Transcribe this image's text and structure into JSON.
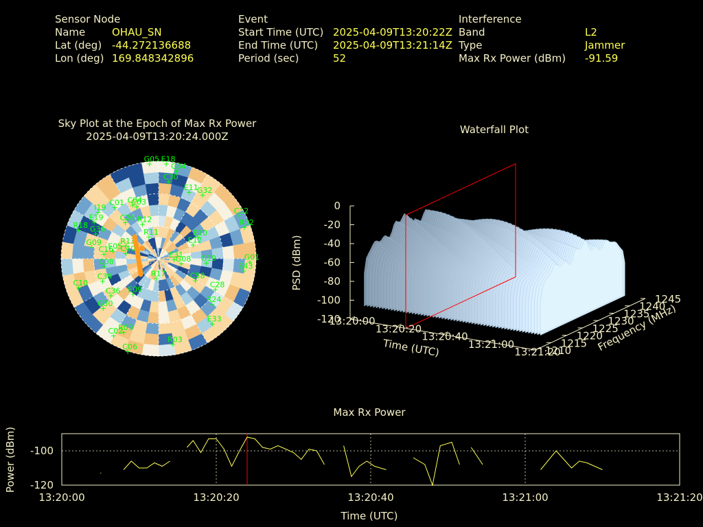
{
  "header": {
    "sensor": {
      "heading": "Sensor Node",
      "rows": [
        {
          "key": "Name",
          "value": "OHAU_SN"
        },
        {
          "key": "Lat (deg)",
          "value": "-44.272136688"
        },
        {
          "key": "Lon (deg)",
          "value": "169.848342896"
        }
      ]
    },
    "event": {
      "heading": "Event",
      "rows": [
        {
          "key": "Start Time (UTC)",
          "value": "2025-04-09T13:20:22Z"
        },
        {
          "key": "End Time (UTC)",
          "value": "2025-04-09T13:21:14Z"
        },
        {
          "key": "Period (sec)",
          "value": "52"
        }
      ]
    },
    "interference": {
      "heading": "Interference",
      "rows": [
        {
          "key": "Band",
          "value": "L2"
        },
        {
          "key": "Type",
          "value": "Jammer"
        },
        {
          "key": "Max Rx Power (dBm)",
          "value": "-91.59"
        }
      ]
    }
  },
  "colors": {
    "background": "#000000",
    "text": "#f4efc6",
    "value": "#ffff55",
    "satellite": "#00ff00",
    "marker": "#ff0000",
    "line": "#ffff55"
  },
  "chart_data": [
    {
      "type": "sky-plot",
      "title": "Sky Plot at the Epoch of Max Rx Power",
      "subtitle": "2025-04-09T13:20:24.000Z",
      "satellites": [
        {
          "id": "G05",
          "az": 355,
          "el": 88
        },
        {
          "id": "E18",
          "az": 5,
          "el": 88
        },
        {
          "id": "G34",
          "az": 12,
          "el": 83
        },
        {
          "id": "C30",
          "az": 8,
          "el": 72
        },
        {
          "id": "E11",
          "az": 25,
          "el": 68
        },
        {
          "id": "G32",
          "az": 35,
          "el": 72
        },
        {
          "id": "C01",
          "az": 320,
          "el": 62
        },
        {
          "id": "C04",
          "az": 335,
          "el": 55
        },
        {
          "id": "C03",
          "az": 338,
          "el": 52
        },
        {
          "id": "I19",
          "az": 308,
          "el": 70
        },
        {
          "id": "E19",
          "az": 300,
          "el": 68
        },
        {
          "id": "R18",
          "az": 290,
          "el": 78
        },
        {
          "id": "G36",
          "az": 292,
          "el": 62
        },
        {
          "id": "C26",
          "az": 318,
          "el": 45
        },
        {
          "id": "R12",
          "az": 336,
          "el": 35
        },
        {
          "id": "E10",
          "az": 62,
          "el": 42
        },
        {
          "id": "E12",
          "az": 68,
          "el": 35
        },
        {
          "id": "C12",
          "az": 62,
          "el": 85
        },
        {
          "id": "R02",
          "az": 70,
          "el": 85
        },
        {
          "id": "G09",
          "az": 280,
          "el": 62
        },
        {
          "id": "C16",
          "az": 275,
          "el": 50
        },
        {
          "id": "E05",
          "az": 280,
          "el": 42
        },
        {
          "id": "R11",
          "az": 338,
          "el": 22
        },
        {
          "id": "R13",
          "az": 292,
          "el": 32
        },
        {
          "id": "C40",
          "az": 280,
          "el": 30
        },
        {
          "id": "C08",
          "az": 262,
          "el": 50
        },
        {
          "id": "E31",
          "az": 92,
          "el": 15
        },
        {
          "id": "G08",
          "az": 102,
          "el": 22
        },
        {
          "id": "G19",
          "az": 95,
          "el": 45
        },
        {
          "id": "E43",
          "az": 98,
          "el": 80
        },
        {
          "id": "G01",
          "az": 92,
          "el": 85
        },
        {
          "id": "C10",
          "az": 250,
          "el": 78
        },
        {
          "id": "C39",
          "az": 248,
          "el": 55
        },
        {
          "id": "C58",
          "az": 120,
          "el": 40
        },
        {
          "id": "C28",
          "az": 118,
          "el": 60
        },
        {
          "id": "R17",
          "az": 185,
          "el": 18
        },
        {
          "id": "E09",
          "az": 215,
          "el": 40
        },
        {
          "id": "R24",
          "az": 130,
          "el": 65
        },
        {
          "id": "C36",
          "az": 232,
          "el": 55
        },
        {
          "id": "G30",
          "az": 228,
          "el": 68
        },
        {
          "id": "E33",
          "az": 140,
          "el": 78
        },
        {
          "id": "R09",
          "az": 205,
          "el": 75
        },
        {
          "id": "C02",
          "az": 210,
          "el": 82
        },
        {
          "id": "R03",
          "az": 170,
          "el": 80
        },
        {
          "id": "C06",
          "az": 198,
          "el": 90
        }
      ]
    },
    {
      "type": "waterfall-3d",
      "title": "Waterfall Plot",
      "xlabel": "Time (UTC)",
      "ylabel": "Frequency (MHz)",
      "zlabel": "PSD (dBm)",
      "x_ticks": [
        "13:20:00",
        "13:20:20",
        "13:20:40",
        "13:21:00",
        "13:21:20"
      ],
      "y_ticks": [
        "1210",
        "1215",
        "1220",
        "1225",
        "1230",
        "1235",
        "1240",
        "1245"
      ],
      "z_ticks": [
        "0",
        "-20",
        "-40",
        "-60",
        "-80",
        "-100",
        "-120"
      ],
      "xlim": [
        0,
        80
      ],
      "ylim": [
        1210,
        1245
      ],
      "zlim": [
        -120,
        0
      ],
      "marker_time": "13:20:24",
      "surface_band_mhz": [
        1213,
        1240
      ],
      "surface_level_dbm": [
        -40,
        -75
      ]
    },
    {
      "type": "line",
      "title": "Max Rx Power",
      "xlabel": "Time (UTC)",
      "ylabel": "Power (dBm)",
      "x_ticks": [
        "13:20:00",
        "13:20:20",
        "13:20:40",
        "13:21:00",
        "13:21:20"
      ],
      "y_ticks": [
        "-100",
        "-120"
      ],
      "xlim": [
        0,
        80
      ],
      "ylim": [
        -120,
        -90
      ],
      "marker_x": 24,
      "segments": [
        [
          [
            5.0,
            -113
          ],
          [
            5.1,
            -113
          ]
        ],
        [
          [
            8,
            -111
          ],
          [
            9,
            -106
          ],
          [
            10,
            -110
          ],
          [
            11,
            -110
          ],
          [
            12,
            -107
          ],
          [
            13,
            -109
          ],
          [
            14,
            -106
          ]
        ],
        [
          [
            16.2,
            -98
          ],
          [
            17,
            -94
          ],
          [
            18,
            -101
          ],
          [
            19,
            -93
          ],
          [
            20,
            -93
          ],
          [
            21,
            -99
          ],
          [
            22,
            -109
          ],
          [
            23,
            -100
          ],
          [
            24,
            -92
          ],
          [
            25,
            -93
          ],
          [
            26,
            -98
          ],
          [
            27,
            -99
          ],
          [
            28,
            -97
          ],
          [
            29,
            -99
          ],
          [
            30,
            -101
          ],
          [
            31,
            -105
          ],
          [
            32,
            -99
          ],
          [
            33,
            -100
          ],
          [
            34,
            -108
          ]
        ],
        [
          [
            36.5,
            -97
          ],
          [
            37.5,
            -115
          ],
          [
            38.5,
            -109
          ],
          [
            39.5,
            -106
          ],
          [
            40.5,
            -109
          ],
          [
            42,
            -111
          ]
        ],
        [
          [
            45.5,
            -104
          ],
          [
            47,
            -108
          ],
          [
            48,
            -122
          ],
          [
            49,
            -97
          ],
          [
            50.5,
            -95
          ],
          [
            51.5,
            -108
          ]
        ],
        [
          [
            53,
            -98
          ],
          [
            54.5,
            -108
          ]
        ],
        [
          [
            62,
            -111
          ],
          [
            64,
            -100
          ],
          [
            65,
            -105
          ],
          [
            66,
            -110
          ],
          [
            67,
            -106
          ],
          [
            68,
            -107
          ],
          [
            70,
            -111
          ]
        ]
      ]
    }
  ]
}
